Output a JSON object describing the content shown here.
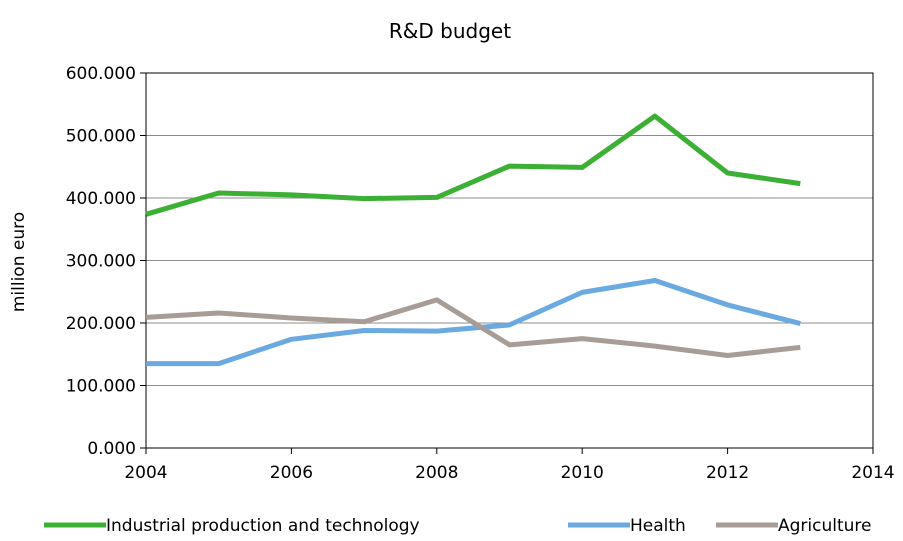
{
  "chart_data": {
    "type": "line",
    "title": "R&D budget",
    "xlabel": "",
    "ylabel": "million euro",
    "xlim": [
      2004,
      2014
    ],
    "ylim": [
      0,
      600
    ],
    "x_ticks": [
      2004,
      2006,
      2008,
      2010,
      2012,
      2014
    ],
    "y_ticks": [
      0,
      100,
      200,
      300,
      400,
      500,
      600
    ],
    "x_tick_labels": [
      "2004",
      "2006",
      "2008",
      "2010",
      "2012",
      "2014"
    ],
    "y_tick_labels": [
      "0.000",
      "100.000",
      "200.000",
      "300.000",
      "400.000",
      "500.000",
      "600.000"
    ],
    "grid": "horizontal",
    "legend_position": "bottom",
    "x": [
      2004,
      2005,
      2006,
      2007,
      2008,
      2009,
      2010,
      2011,
      2012,
      2013
    ],
    "series": [
      {
        "name": "Industrial production and technology",
        "color": "#3cb034",
        "values": [
          374,
          408,
          405,
          399,
          401,
          451,
          449,
          531,
          440,
          423
        ]
      },
      {
        "name": "Health",
        "color": "#6aaae0",
        "values": [
          135,
          135,
          174,
          188,
          187,
          197,
          249,
          268,
          229,
          199
        ]
      },
      {
        "name": "Agriculture",
        "color": "#a79d96",
        "values": [
          209,
          216,
          208,
          202,
          237,
          165,
          175,
          163,
          148,
          161
        ]
      }
    ]
  }
}
